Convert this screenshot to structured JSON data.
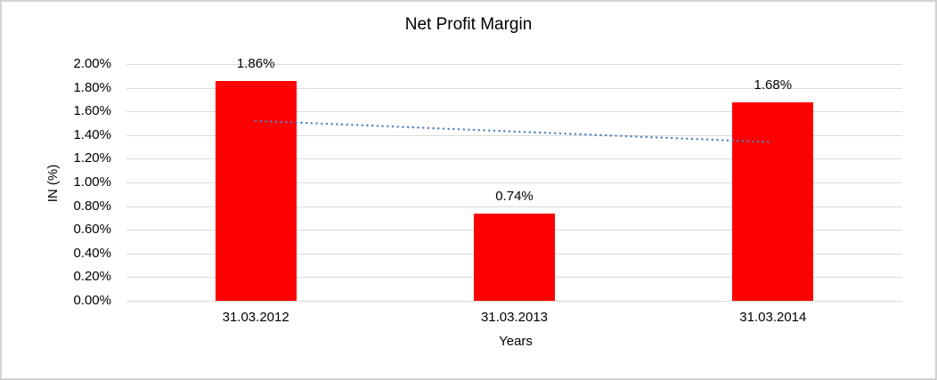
{
  "chart_data": {
    "type": "bar",
    "title": "Net Profit Margin",
    "xlabel": "Years",
    "ylabel": "IN (%)",
    "categories": [
      "31.03.2012",
      "31.03.2013",
      "31.03.2014"
    ],
    "values": [
      1.86,
      0.74,
      1.68
    ],
    "data_labels": [
      "1.86%",
      "0.74%",
      "1.68%"
    ],
    "ylim": [
      0,
      2.0
    ],
    "ytick_step": 0.2,
    "ytick_labels": [
      "0.00%",
      "0.20%",
      "0.40%",
      "0.60%",
      "0.80%",
      "1.00%",
      "1.20%",
      "1.40%",
      "1.60%",
      "1.80%",
      "2.00%"
    ],
    "grid": true,
    "legend": "none",
    "bar_color": "#ff0000",
    "gridline_color": "#d9d9d9",
    "text_color": "#000000",
    "trendline": {
      "type": "linear",
      "style": "dotted",
      "color": "#4a82c4",
      "start_value": 1.52,
      "end_value": 1.34
    }
  }
}
